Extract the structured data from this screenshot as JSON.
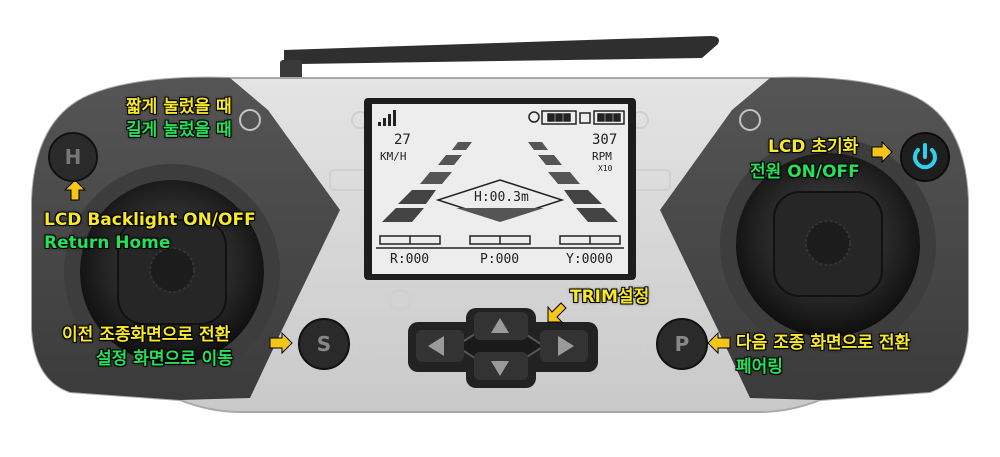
{
  "labels": {
    "h_short": "짧게 눌렀을 때",
    "h_long": "길게 눌렀을 때",
    "h_short_action": "LCD Backlight ON/OFF",
    "h_long_action": "Return Home",
    "power_short": "LCD 초기화",
    "power_long": "전원 ON/OFF",
    "s_short": "이전 조종화면으로 전환",
    "s_long": "설정 화면으로 이동",
    "trim": "TRIM설정",
    "p_short": "다음 조종 화면으로 전환",
    "p_long": "페어링"
  },
  "buttons": {
    "h": "H",
    "s": "S",
    "p": "P",
    "power_icon": "power-icon"
  },
  "lcd": {
    "speed_value": "27",
    "speed_unit": "KM/H",
    "rpm_value": "307",
    "rpm_unit": "RPM",
    "rpm_multiplier": "X10",
    "height": "H:00.3m",
    "roll": "R:000",
    "pitch": "P:000",
    "yaw": "Y:0000",
    "icons": [
      "signal-icon",
      "battery-icon",
      "drone-battery-icon"
    ]
  },
  "colors": {
    "short_press": "#f7e92a",
    "long_press": "#26e05a",
    "arrow": "#f5c518",
    "power_icon": "#2fd0ee"
  }
}
